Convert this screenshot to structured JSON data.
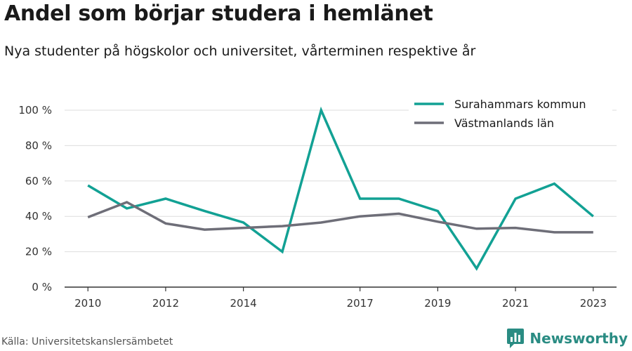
{
  "title": "Andel som börjar studera i hemlänet",
  "subtitle": "Nya studenter på högskolor och universitet, vårterminen respektive år",
  "source": "Källa: Universitetskanslersämbetet",
  "brand": "Newsworthy",
  "colors": {
    "teal": "#12a194",
    "gray": "#6e6e78",
    "grid": "#dddddd",
    "axis": "#333333",
    "brand": "#2a8c83"
  },
  "chart_data": {
    "type": "line",
    "x": [
      2010,
      2011,
      2012,
      2013,
      2014,
      2015,
      2016,
      2017,
      2018,
      2019,
      2020,
      2021,
      2022,
      2023
    ],
    "x_ticks": [
      2010,
      2012,
      2014,
      2017,
      2019,
      2021,
      2023
    ],
    "y_ticks": [
      0,
      20,
      40,
      60,
      80,
      100
    ],
    "y_tick_labels": [
      "0 %",
      "20 %",
      "40 %",
      "60 %",
      "80 %",
      "100 %"
    ],
    "ylim": [
      0,
      100
    ],
    "xlim": [
      2009.4,
      2023.6
    ],
    "grid": true,
    "legend": "top-right",
    "series": [
      {
        "name": "Surahammars kommun",
        "color": "#12a194",
        "values": [
          57.5,
          44.5,
          50,
          43,
          36.5,
          20,
          100,
          50,
          50,
          43,
          10.5,
          50,
          58.5,
          40
        ]
      },
      {
        "name": "Västmanlands län",
        "color": "#6e6e78",
        "values": [
          39.5,
          48,
          36,
          32.5,
          33.5,
          34.5,
          36.5,
          40,
          41.5,
          37,
          33,
          33.5,
          31,
          31
        ]
      }
    ]
  }
}
